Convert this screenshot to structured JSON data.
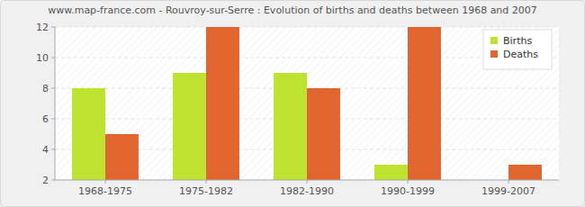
{
  "chart_data": {
    "type": "bar",
    "title": "www.map-france.com - Rouvroy-sur-Serre : Evolution of births and deaths between 1968 and 2007",
    "categories": [
      "1968-1975",
      "1975-1982",
      "1982-1990",
      "1990-1999",
      "1999-2007"
    ],
    "series": [
      {
        "name": "Births",
        "color": "#bde22f",
        "values": [
          8,
          9,
          9,
          3,
          2
        ]
      },
      {
        "name": "Deaths",
        "color": "#e0652f",
        "values": [
          5,
          12,
          8,
          12,
          3
        ]
      }
    ],
    "ylim": [
      2,
      12
    ],
    "yticks": [
      2,
      4,
      6,
      8,
      10,
      12
    ],
    "grid": true,
    "legend": "upper right"
  }
}
